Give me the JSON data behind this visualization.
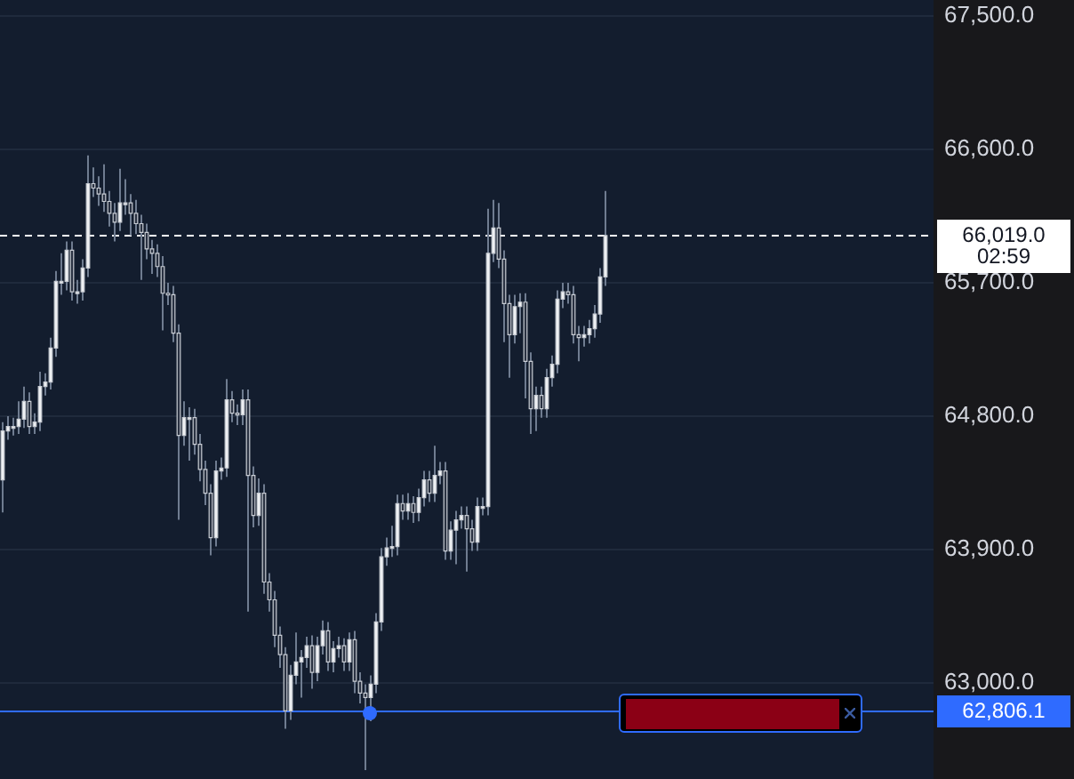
{
  "chart_data": {
    "type": "candlestick",
    "categories": [
      null,
      null,
      null,
      null,
      null,
      null,
      null,
      null,
      null,
      null,
      null,
      null,
      null,
      null,
      null,
      null,
      null,
      null,
      null,
      null,
      null,
      null,
      null,
      null,
      null,
      null,
      null,
      null,
      null,
      null,
      null,
      null,
      null,
      null,
      null,
      null,
      null,
      null,
      null,
      null,
      null,
      null,
      null,
      null,
      null,
      null,
      null,
      null,
      null,
      null,
      null,
      null,
      null,
      null,
      null,
      null,
      null,
      null,
      null,
      null,
      null,
      null,
      null,
      null,
      null,
      null,
      null,
      null,
      null,
      null,
      null,
      null,
      null,
      null,
      null,
      null,
      null,
      null,
      null,
      null,
      null,
      null,
      null,
      null,
      null,
      null,
      null,
      null,
      null,
      null,
      null,
      null,
      null,
      null,
      null,
      null,
      null,
      null,
      null,
      null,
      null,
      null,
      null,
      null,
      null,
      null,
      null,
      null,
      null,
      null,
      null,
      null,
      null,
      null,
      null,
      null,
      null,
      null,
      null,
      null,
      null,
      null,
      null,
      null,
      null,
      null,
      null,
      null,
      null,
      null,
      null,
      null,
      null,
      null,
      null,
      null,
      null,
      null,
      null,
      null,
      null,
      null,
      null,
      null,
      null,
      null,
      null,
      null,
      null,
      null,
      null,
      null,
      null,
      null,
      null,
      null,
      null,
      null,
      null,
      null,
      null,
      null,
      null,
      null,
      null,
      null,
      null,
      null,
      null,
      null,
      null,
      null,
      null,
      null,
      null
    ],
    "ohlc": [
      [
        64370,
        64760,
        64150,
        64700
      ],
      [
        64700,
        64800,
        64640,
        64730
      ],
      [
        64730,
        64790,
        64670,
        64730
      ],
      [
        64730,
        64900,
        64680,
        64780
      ],
      [
        64780,
        65000,
        64720,
        64900
      ],
      [
        64900,
        64960,
        64680,
        64730
      ],
      [
        64730,
        64820,
        64680,
        64760
      ],
      [
        64760,
        65100,
        64700,
        65000
      ],
      [
        65000,
        65090,
        64940,
        65030
      ],
      [
        65030,
        65330,
        64980,
        65260
      ],
      [
        65260,
        65780,
        65200,
        65710
      ],
      [
        65710,
        65900,
        65620,
        65710
      ],
      [
        65710,
        65980,
        65650,
        65920
      ],
      [
        65920,
        65980,
        65580,
        65640
      ],
      [
        65640,
        65720,
        65560,
        65640
      ],
      [
        65640,
        65860,
        65580,
        65800
      ],
      [
        65800,
        66560,
        65740,
        66370
      ],
      [
        66370,
        66480,
        66280,
        66340
      ],
      [
        66340,
        66420,
        66220,
        66300
      ],
      [
        66300,
        66500,
        66180,
        66250
      ],
      [
        66250,
        66320,
        66080,
        66170
      ],
      [
        66170,
        66240,
        65980,
        66110
      ],
      [
        66110,
        66470,
        66050,
        66240
      ],
      [
        66240,
        66400,
        66160,
        66240
      ],
      [
        66240,
        66300,
        66020,
        66170
      ],
      [
        66170,
        66260,
        66030,
        66100
      ],
      [
        66100,
        66160,
        65720,
        66040
      ],
      [
        66040,
        66100,
        65860,
        65930
      ],
      [
        65930,
        65990,
        65760,
        65900
      ],
      [
        65900,
        65960,
        65740,
        65810
      ],
      [
        65810,
        65880,
        65380,
        65630
      ],
      [
        65630,
        65700,
        65550,
        65620
      ],
      [
        65620,
        65680,
        65300,
        65360
      ],
      [
        65360,
        65420,
        64100,
        64670
      ],
      [
        64670,
        64900,
        64600,
        64790
      ],
      [
        64790,
        64860,
        64500,
        64790
      ],
      [
        64790,
        64850,
        64540,
        64610
      ],
      [
        64610,
        64680,
        64360,
        64440
      ],
      [
        64440,
        64500,
        64200,
        64280
      ],
      [
        64280,
        64340,
        63860,
        63980
      ],
      [
        63980,
        64500,
        63920,
        64430
      ],
      [
        64430,
        64520,
        64370,
        64450
      ],
      [
        64450,
        65050,
        64390,
        64910
      ],
      [
        64910,
        64970,
        64760,
        64820
      ],
      [
        64820,
        64880,
        64740,
        64810
      ],
      [
        64810,
        64980,
        64740,
        64910
      ],
      [
        64910,
        64980,
        63480,
        64400
      ],
      [
        64400,
        64460,
        64050,
        64130
      ],
      [
        64130,
        64380,
        64060,
        64280
      ],
      [
        64280,
        64340,
        63600,
        63680
      ],
      [
        63680,
        63740,
        63480,
        63560
      ],
      [
        63560,
        63620,
        63240,
        63320
      ],
      [
        63320,
        63380,
        63100,
        63190
      ],
      [
        63190,
        63240,
        62690,
        62810
      ],
      [
        62810,
        63120,
        62750,
        63050
      ],
      [
        63050,
        63340,
        62990,
        63140
      ],
      [
        63140,
        63220,
        62900,
        63170
      ],
      [
        63170,
        63310,
        63100,
        63250
      ],
      [
        63250,
        63320,
        62960,
        63070
      ],
      [
        63070,
        63310,
        63010,
        63250
      ],
      [
        63250,
        63420,
        63190,
        63350
      ],
      [
        63350,
        63410,
        63080,
        63140
      ],
      [
        63140,
        63280,
        63070,
        63230
      ],
      [
        63230,
        63310,
        63170,
        63250
      ],
      [
        63250,
        63300,
        63080,
        63140
      ],
      [
        63140,
        63340,
        63080,
        63290
      ],
      [
        63290,
        63350,
        62930,
        63010
      ],
      [
        63010,
        63070,
        62860,
        62930
      ],
      [
        62930,
        62990,
        62410,
        62900
      ],
      [
        62900,
        63050,
        62740,
        62990
      ],
      [
        62990,
        63470,
        62930,
        63410
      ],
      [
        63410,
        63910,
        63350,
        63850
      ],
      [
        63850,
        63980,
        63790,
        63910
      ],
      [
        63910,
        64060,
        63850,
        63920
      ],
      [
        63920,
        64270,
        63860,
        64210
      ],
      [
        64210,
        64270,
        64100,
        64160
      ],
      [
        64160,
        64280,
        64100,
        64210
      ],
      [
        64210,
        64260,
        64080,
        64150
      ],
      [
        64150,
        64310,
        64090,
        64250
      ],
      [
        64250,
        64430,
        64190,
        64370
      ],
      [
        64370,
        64430,
        64220,
        64280
      ],
      [
        64280,
        64600,
        64220,
        64400
      ],
      [
        64400,
        64490,
        64340,
        64430
      ],
      [
        64430,
        64490,
        63830,
        63890
      ],
      [
        63890,
        64090,
        63830,
        64030
      ],
      [
        64030,
        64160,
        63800,
        64100
      ],
      [
        64100,
        64190,
        64040,
        64130
      ],
      [
        64130,
        64190,
        63750,
        64040
      ],
      [
        64040,
        64100,
        63890,
        63950
      ],
      [
        63950,
        64250,
        63890,
        64190
      ],
      [
        64190,
        64250,
        64130,
        64190
      ],
      [
        64190,
        66200,
        64130,
        65900
      ],
      [
        65900,
        66260,
        65840,
        66070
      ],
      [
        66070,
        66240,
        65800,
        65860
      ],
      [
        65860,
        65920,
        65300,
        65560
      ],
      [
        65560,
        65620,
        65060,
        65350
      ],
      [
        65350,
        65620,
        65290,
        65540
      ],
      [
        65540,
        65630,
        65360,
        65570
      ],
      [
        65570,
        65630,
        64920,
        65170
      ],
      [
        65170,
        65230,
        64680,
        64850
      ],
      [
        64850,
        65000,
        64700,
        64940
      ],
      [
        64940,
        65000,
        64790,
        64850
      ],
      [
        64850,
        65120,
        64790,
        65060
      ],
      [
        65060,
        65210,
        65000,
        65150
      ],
      [
        65150,
        65650,
        65090,
        65590
      ],
      [
        65590,
        65700,
        65530,
        65640
      ],
      [
        65640,
        65700,
        65560,
        65620
      ],
      [
        65620,
        65680,
        65290,
        65350
      ],
      [
        65350,
        65410,
        65170,
        65330
      ],
      [
        65330,
        65410,
        65270,
        65350
      ],
      [
        65350,
        65450,
        65290,
        65390
      ],
      [
        65390,
        65550,
        65330,
        65490
      ],
      [
        65490,
        65800,
        65430,
        65740
      ],
      [
        65740,
        66320,
        65680,
        66019
      ],
      null,
      null,
      null,
      null,
      null,
      null,
      null,
      null,
      null,
      null,
      null,
      null,
      null,
      null,
      null,
      null,
      null,
      null,
      null,
      null,
      null,
      null,
      null,
      null,
      null,
      null,
      null,
      null,
      null,
      null,
      null,
      null,
      null,
      null,
      null,
      null,
      null,
      null,
      null,
      null,
      null,
      null,
      null,
      null,
      null,
      null,
      null,
      null,
      null,
      null,
      null,
      null,
      null,
      null,
      null,
      null,
      null,
      null,
      null,
      null,
      null
    ],
    "ylim": [
      62350,
      67610
    ],
    "yticks": [
      {
        "value": 63000,
        "label": "63,000.0"
      },
      {
        "value": 63900,
        "label": "63,900.0"
      },
      {
        "value": 64800,
        "label": "64,800.0"
      },
      {
        "value": 65700,
        "label": "65,700.0"
      },
      {
        "value": 66600,
        "label": "66,600.0"
      },
      {
        "value": 67500,
        "label": "67,500.0"
      }
    ],
    "tick_labels": "y",
    "grid": "y",
    "legend": false,
    "ref_lines": [
      {
        "axis": "y",
        "value": 66019,
        "label": "66,019.0",
        "color": "#ffffff",
        "line_style": "dashed"
      },
      {
        "axis": "y",
        "value": 62806.1,
        "label": "62,806.1",
        "color": "#2f6bff",
        "line_style": "solid"
      }
    ],
    "annotations": [
      "02:59"
    ]
  }
}
